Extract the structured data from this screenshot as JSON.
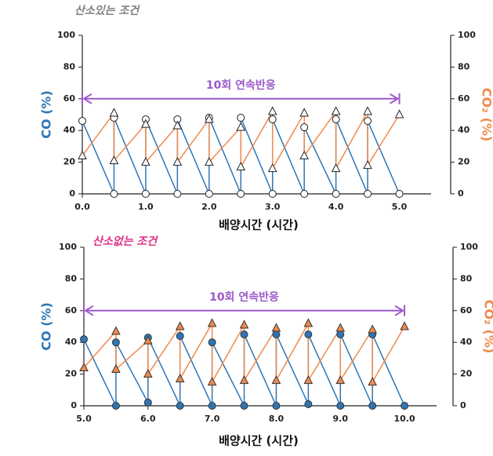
{
  "chart_data": [
    {
      "type": "line",
      "title": "산소있는 조건",
      "annotation": "10회 연속반응",
      "xlabel": "배양시간 (시간)",
      "ylabel": "CO (%)",
      "y2label": "CO₂ (%)",
      "x": [
        0,
        0.5,
        0.5,
        1.0,
        1.0,
        1.5,
        1.5,
        2.0,
        2.0,
        2.5,
        2.5,
        3.0,
        3.0,
        3.5,
        3.5,
        4.0,
        4.0,
        4.5,
        4.5,
        5.0
      ],
      "series": [
        {
          "color": "#2e75b6",
          "marker": "circle",
          "marker_fill": "#ffffff",
          "values": [
            46,
            0,
            48,
            0,
            47,
            0,
            47,
            0,
            48,
            0,
            48,
            0,
            47,
            0,
            42,
            0,
            47,
            0,
            46,
            0
          ]
        },
        {
          "color": "#f08a4b",
          "marker": "triangle",
          "marker_fill": "#ffffff",
          "axis": "y2",
          "values": [
            24,
            51,
            21,
            44,
            20,
            43,
            20,
            47,
            20,
            42,
            17,
            52,
            16,
            51,
            24,
            52,
            16,
            52,
            18,
            50
          ]
        }
      ],
      "xlim": [
        0,
        5.5
      ],
      "xticks": [
        {
          "value": 0,
          "label": "0.0"
        },
        {
          "value": 1,
          "label": "1.0"
        },
        {
          "value": 2,
          "label": "2.0"
        },
        {
          "value": 3,
          "label": "3.0"
        },
        {
          "value": 4,
          "label": "4.0"
        },
        {
          "value": 5,
          "label": "5.0"
        }
      ],
      "ylim": [
        0,
        100
      ],
      "yticks": [
        0,
        20,
        40,
        60,
        80,
        100
      ],
      "y2lim": [
        0,
        100
      ],
      "y2ticks": [
        0,
        20,
        40,
        60,
        80,
        100
      ],
      "title_color": "#808080"
    },
    {
      "type": "line",
      "title": "산소없는 조건",
      "annotation": "10회 연속반응",
      "xlabel": "배양시간 (시간)",
      "ylabel": "CO (%)",
      "y2label": "CO₂ (%)",
      "x": [
        5.0,
        5.5,
        5.5,
        6.0,
        6.0,
        6.5,
        6.5,
        7.0,
        7.0,
        7.5,
        7.5,
        8.0,
        8.0,
        8.5,
        8.5,
        9.0,
        9.0,
        9.5,
        9.5,
        10.0
      ],
      "series": [
        {
          "color": "#2e75b6",
          "marker": "circle",
          "marker_fill": "#2e75b6",
          "values": [
            42,
            0,
            40,
            2,
            43,
            0,
            44,
            0,
            40,
            0,
            45,
            0,
            45,
            1,
            45,
            0,
            45,
            0,
            45,
            0
          ]
        },
        {
          "color": "#f08a4b",
          "marker": "triangle",
          "marker_fill": "#f08a4b",
          "axis": "y2",
          "values": [
            24,
            47,
            23,
            41,
            20,
            50,
            17,
            52,
            15,
            51,
            16,
            49,
            16,
            52,
            16,
            49,
            16,
            48,
            15,
            50
          ]
        }
      ],
      "xlim": [
        5,
        10.5
      ],
      "xticks": [
        {
          "value": 5,
          "label": "5.0"
        },
        {
          "value": 6,
          "label": "6.0"
        },
        {
          "value": 7,
          "label": "7.0"
        },
        {
          "value": 8,
          "label": "8.0"
        },
        {
          "value": 9,
          "label": "9.0"
        },
        {
          "value": 10,
          "label": "10.0"
        }
      ],
      "ylim": [
        0,
        100
      ],
      "yticks": [
        0,
        20,
        40,
        60,
        80,
        100
      ],
      "y2lim": [
        0,
        100
      ],
      "y2ticks": [
        0,
        20,
        40,
        60,
        80,
        100
      ],
      "title_color": "#e0338a"
    }
  ]
}
